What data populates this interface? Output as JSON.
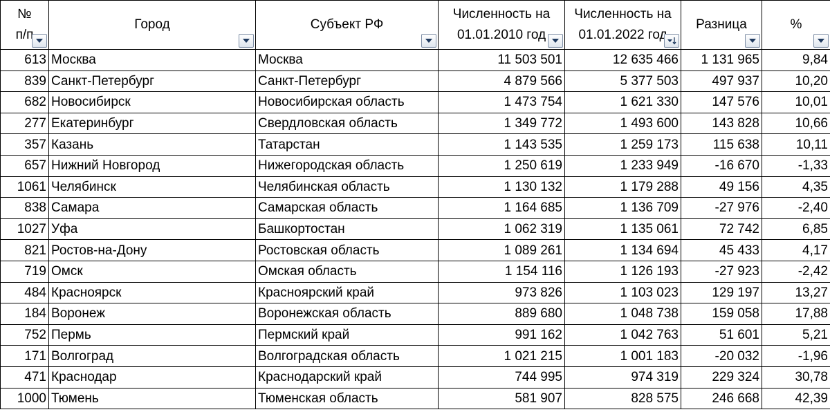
{
  "columns": [
    {
      "label": "№\nп/п",
      "sorted": false
    },
    {
      "label": "Город",
      "sorted": false
    },
    {
      "label": "Субъект РФ",
      "sorted": false
    },
    {
      "label": "Численность на\n01.01.2010 год",
      "sorted": false
    },
    {
      "label": "Численность на\n01.01.2022 год",
      "sorted": true
    },
    {
      "label": "Разница",
      "sorted": false
    },
    {
      "label": "%",
      "sorted": false
    }
  ],
  "rows": [
    [
      "613",
      "Москва",
      "Москва",
      "11 503 501",
      "12 635 466",
      "1 131 965",
      "9,84"
    ],
    [
      "839",
      "Санкт-Петербург",
      "Санкт-Петербург",
      "4 879 566",
      "5 377 503",
      "497 937",
      "10,20"
    ],
    [
      "682",
      "Новосибирск",
      "Новосибирская область",
      "1 473 754",
      "1 621 330",
      "147 576",
      "10,01"
    ],
    [
      "277",
      "Екатеринбург",
      "Свердловская область",
      "1 349 772",
      "1 493 600",
      "143 828",
      "10,66"
    ],
    [
      "357",
      "Казань",
      "Татарстан",
      "1 143 535",
      "1 259 173",
      "115 638",
      "10,11"
    ],
    [
      "657",
      "Нижний Новгород",
      "Нижегородская область",
      "1 250 619",
      "1 233 949",
      "-16 670",
      "-1,33"
    ],
    [
      "1061",
      "Челябинск",
      "Челябинская область",
      "1 130 132",
      "1 179 288",
      "49 156",
      "4,35"
    ],
    [
      "838",
      "Самара",
      "Самарская область",
      "1 164 685",
      "1 136 709",
      "-27 976",
      "-2,40"
    ],
    [
      "1027",
      "Уфа",
      "Башкортостан",
      "1 062 319",
      "1 135 061",
      "72 742",
      "6,85"
    ],
    [
      "821",
      "Ростов-на-Дону",
      "Ростовская область",
      "1 089 261",
      "1 134 694",
      "45 433",
      "4,17"
    ],
    [
      "719",
      "Омск",
      "Омская область",
      "1 154 116",
      "1 126 193",
      "-27 923",
      "-2,42"
    ],
    [
      "484",
      "Красноярск",
      "Красноярский край",
      "973 826",
      "1 103 023",
      "129 197",
      "13,27"
    ],
    [
      "184",
      "Воронеж",
      "Воронежская область",
      "889 680",
      "1 048 738",
      "159 058",
      "17,88"
    ],
    [
      "752",
      "Пермь",
      "Пермский край",
      "991 162",
      "1 042 763",
      "51 601",
      "5,21"
    ],
    [
      "171",
      "Волгоград",
      "Волгоградская область",
      "1 021 215",
      "1 001 183",
      "-20 032",
      "-1,96"
    ],
    [
      "471",
      "Краснодар",
      "Краснодарский край",
      "744 995",
      "974 319",
      "229 324",
      "30,78"
    ],
    [
      "1000",
      "Тюмень",
      "Тюменская область",
      "581 907",
      "828 575",
      "246 668",
      "42,39"
    ]
  ]
}
